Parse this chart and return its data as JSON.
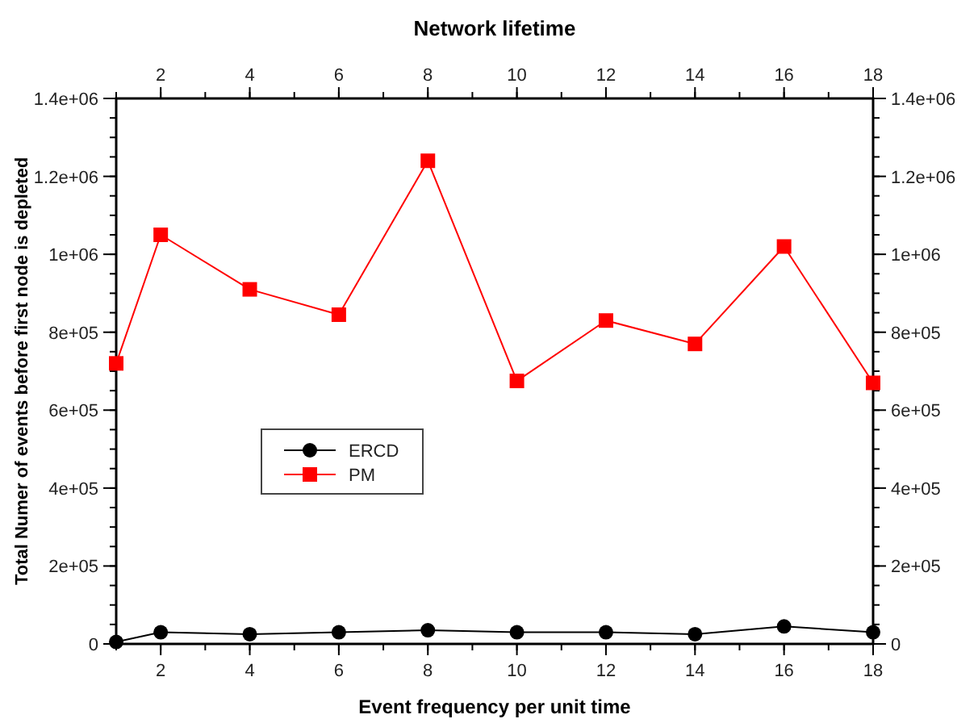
{
  "chart_data": {
    "type": "line",
    "title": "Network lifetime",
    "xlabel": "Event frequency per unit time",
    "ylabel": "Total Numer of events before first node is depleted",
    "x": [
      1,
      2,
      4,
      6,
      8,
      10,
      12,
      14,
      16,
      18
    ],
    "series": [
      {
        "name": "ERCD",
        "color": "#000000",
        "marker": "circle",
        "values": [
          5000,
          30000,
          25000,
          30000,
          35000,
          30000,
          30000,
          25000,
          45000,
          30000
        ]
      },
      {
        "name": "PM",
        "color": "#ff0000",
        "marker": "square",
        "values": [
          720000,
          1050000,
          910000,
          845000,
          1240000,
          675000,
          830000,
          770000,
          1020000,
          670000
        ]
      }
    ],
    "xlim": [
      1,
      18
    ],
    "xticks": [
      2,
      4,
      6,
      8,
      10,
      12,
      14,
      16,
      18
    ],
    "x2lim": [
      1,
      18
    ],
    "x2ticks": [
      2,
      4,
      6,
      8,
      10,
      12,
      14,
      16,
      18
    ],
    "ylim": [
      0,
      1400000
    ],
    "yticks": [
      0,
      {
        "value": 200000,
        "label": "2e+05"
      },
      {
        "value": 400000,
        "label": "4e+05"
      },
      {
        "value": 600000,
        "label": "6e+05"
      },
      {
        "value": 800000,
        "label": "8e+05"
      },
      {
        "value": 1000000,
        "label": "1e+06"
      },
      {
        "value": 1200000,
        "label": "1.2e+06"
      },
      {
        "value": 1400000,
        "label": "1.4e+06"
      }
    ],
    "y2lim": [
      0,
      1400000
    ],
    "y2ticks": [
      0,
      {
        "value": 200000,
        "label": "2e+05"
      },
      {
        "value": 400000,
        "label": "4e+05"
      },
      {
        "value": 600000,
        "label": "6e+05"
      },
      {
        "value": 800000,
        "label": "8e+05"
      },
      {
        "value": 1000000,
        "label": "1e+06"
      },
      {
        "value": 1200000,
        "label": "1.2e+06"
      },
      {
        "value": 1400000,
        "label": "1.4e+06"
      }
    ],
    "legend": "left",
    "grid": false,
    "line_style": "solid"
  }
}
